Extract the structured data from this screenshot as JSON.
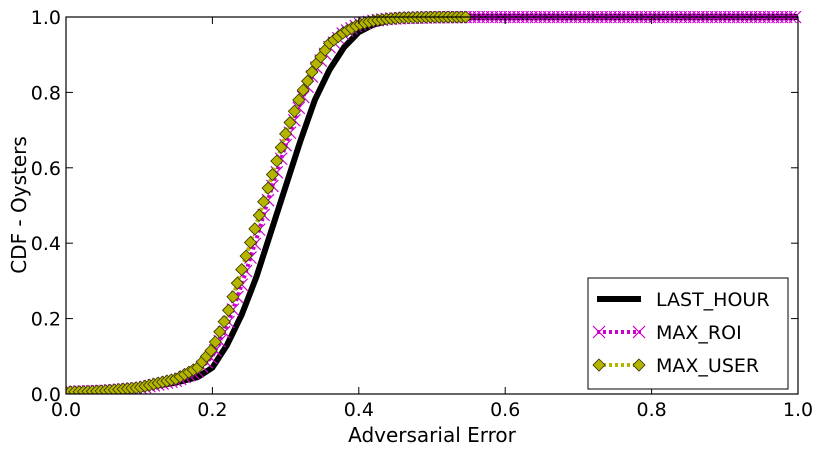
{
  "chart_data": {
    "type": "line",
    "title": "",
    "xlabel": "Adversarial Error",
    "ylabel": "CDF - Oysters",
    "xlim": [
      0.0,
      1.0
    ],
    "ylim": [
      0.0,
      1.0
    ],
    "xticks": [
      "0.0",
      "0.2",
      "0.4",
      "0.6",
      "0.8",
      "1.0"
    ],
    "yticks": [
      "0.0",
      "0.2",
      "0.4",
      "0.6",
      "0.8",
      "1.0"
    ],
    "grid": false,
    "legend_position": "bottom-right",
    "series": [
      {
        "name": "LAST_HOUR",
        "color": "#000000",
        "style": "thick-solid",
        "x": [
          0.0,
          0.05,
          0.1,
          0.15,
          0.18,
          0.2,
          0.22,
          0.24,
          0.26,
          0.28,
          0.3,
          0.32,
          0.34,
          0.36,
          0.38,
          0.4,
          0.42,
          0.44,
          0.46,
          0.5,
          0.55,
          0.6,
          0.7,
          0.8,
          0.9,
          1.0
        ],
        "y": [
          0.005,
          0.008,
          0.015,
          0.03,
          0.045,
          0.07,
          0.13,
          0.21,
          0.31,
          0.43,
          0.55,
          0.67,
          0.78,
          0.86,
          0.92,
          0.96,
          0.98,
          0.99,
          0.995,
          0.998,
          1.0,
          1.0,
          1.0,
          1.0,
          1.0,
          1.0
        ]
      },
      {
        "name": "MAX_ROI",
        "color": "#cc00cc",
        "style": "dotted-x-markers",
        "x": [
          0.0,
          0.05,
          0.1,
          0.15,
          0.18,
          0.2,
          0.22,
          0.24,
          0.26,
          0.28,
          0.3,
          0.32,
          0.34,
          0.36,
          0.38,
          0.4,
          0.42,
          0.44,
          0.46,
          0.5,
          0.55,
          0.6,
          0.7,
          0.8,
          0.9,
          1.0
        ],
        "y": [
          0.005,
          0.008,
          0.015,
          0.035,
          0.06,
          0.1,
          0.18,
          0.29,
          0.41,
          0.54,
          0.66,
          0.77,
          0.86,
          0.92,
          0.96,
          0.98,
          0.99,
          0.995,
          0.997,
          0.999,
          1.0,
          1.0,
          1.0,
          1.0,
          1.0,
          1.0
        ]
      },
      {
        "name": "MAX_USER",
        "color": "#b5b500",
        "style": "dotted-diamond-markers",
        "x": [
          0.0,
          0.05,
          0.1,
          0.15,
          0.18,
          0.2,
          0.22,
          0.24,
          0.26,
          0.28,
          0.3,
          0.32,
          0.34,
          0.36,
          0.38,
          0.4,
          0.42,
          0.44,
          0.46,
          0.5,
          0.55
        ],
        "y": [
          0.005,
          0.008,
          0.017,
          0.04,
          0.07,
          0.12,
          0.21,
          0.33,
          0.45,
          0.57,
          0.69,
          0.79,
          0.87,
          0.93,
          0.96,
          0.98,
          0.99,
          0.995,
          0.998,
          1.0,
          1.0
        ]
      }
    ]
  }
}
